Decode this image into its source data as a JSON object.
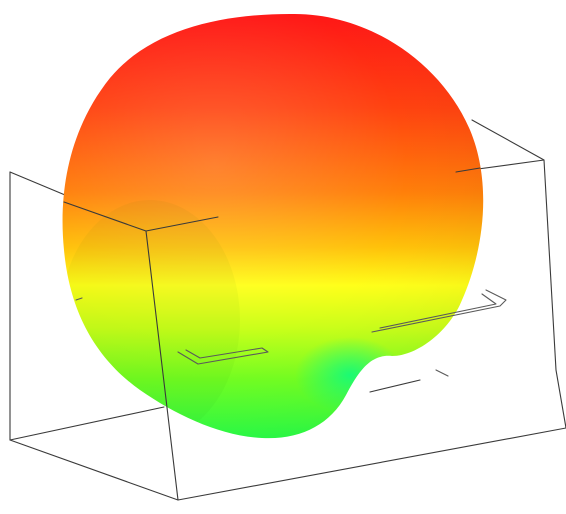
{
  "scene": {
    "type": "3d-radiation-pattern",
    "background_color": "#ffffff",
    "colormap": [
      "#ff1010",
      "#ff5a00",
      "#ffb000",
      "#ffff00",
      "#a6ff00",
      "#00ff60"
    ],
    "wireframe_color": "#333333"
  }
}
